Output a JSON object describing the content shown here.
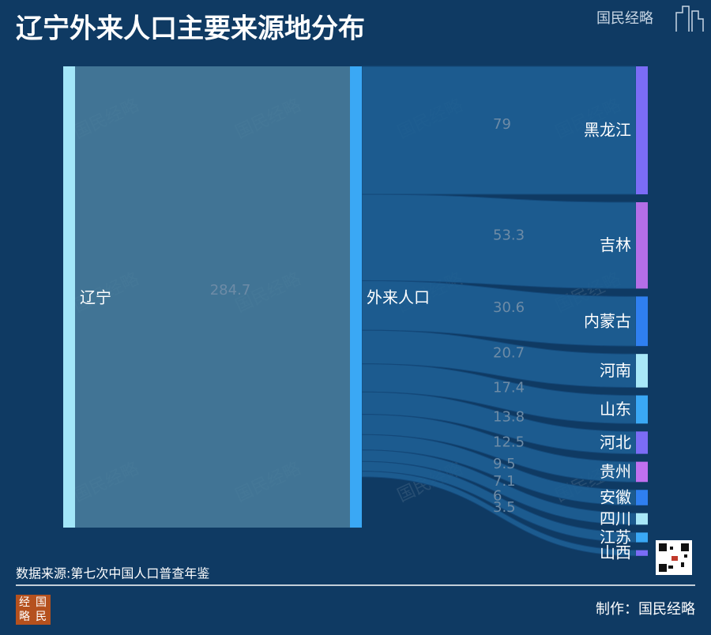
{
  "chart_data": {
    "type": "sankey",
    "title": "辽宁外来人口主要来源地分布",
    "nodes": [
      {
        "name": "辽宁",
        "color": "#a3e6f8"
      },
      {
        "name": "外来人口",
        "color": "#3aa8f5"
      },
      {
        "name": "黑龙江",
        "color": "#7b6cf6"
      },
      {
        "name": "吉林",
        "color": "#b46ee8"
      },
      {
        "name": "内蒙古",
        "color": "#2f7ff0"
      },
      {
        "name": "河南",
        "color": "#a8e8f8"
      },
      {
        "name": "山东",
        "color": "#3aa8f5"
      },
      {
        "name": "河北",
        "color": "#7b6cf6"
      },
      {
        "name": "贵州",
        "color": "#c070f0"
      },
      {
        "name": "安徽",
        "color": "#2f7ff0"
      },
      {
        "name": "四川",
        "color": "#a8e8f8"
      },
      {
        "name": "江苏",
        "color": "#3aa8f5"
      },
      {
        "name": "山西",
        "color": "#7b6cf6"
      }
    ],
    "links": [
      {
        "source": 0,
        "target": 1,
        "value": 284.7
      },
      {
        "source": 1,
        "target": 2,
        "value": 79
      },
      {
        "source": 1,
        "target": 3,
        "value": 53.3
      },
      {
        "source": 1,
        "target": 4,
        "value": 30.6
      },
      {
        "source": 1,
        "target": 5,
        "value": 20.7
      },
      {
        "source": 1,
        "target": 6,
        "value": 17.4
      },
      {
        "source": 1,
        "target": 7,
        "value": 13.8
      },
      {
        "source": 1,
        "target": 8,
        "value": 12.5
      },
      {
        "source": 1,
        "target": 9,
        "value": 9.5
      },
      {
        "source": 1,
        "target": 10,
        "value": 7.1
      },
      {
        "source": 1,
        "target": 11,
        "value": 6
      },
      {
        "source": 1,
        "target": 12,
        "value": 3.5
      }
    ]
  },
  "source": "数据来源:第七次中国人口普查年鉴",
  "credit": "制作：国民经略",
  "watermark": "国民经略",
  "logo_text": [
    "经",
    "国",
    "略",
    "民"
  ]
}
